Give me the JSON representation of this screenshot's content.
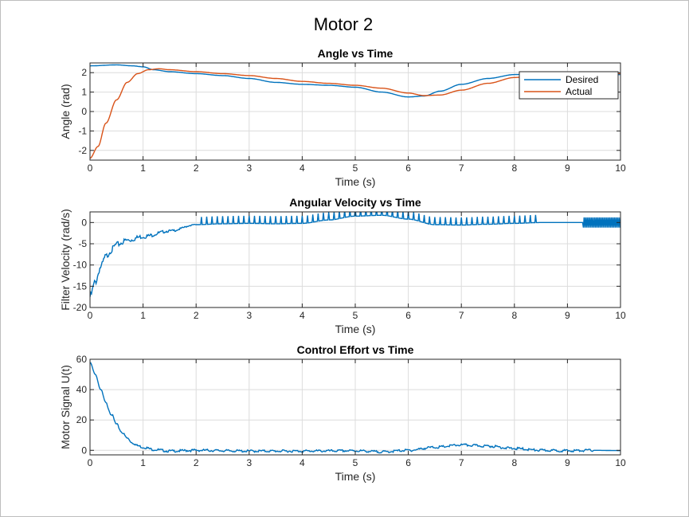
{
  "figure": {
    "title": "Motor 2"
  },
  "colors": {
    "series1": "#0072BD",
    "series2": "#D95319",
    "grid": "#dcdcdc",
    "axis": "#262626"
  },
  "chart_data": [
    {
      "type": "line",
      "title": "Angle vs Time",
      "xlabel": "Time (s)",
      "ylabel": "Angle (rad)",
      "xlim": [
        0,
        10
      ],
      "ylim": [
        -2.5,
        2.5
      ],
      "xticks": [
        0,
        1,
        2,
        3,
        4,
        5,
        6,
        7,
        8,
        9,
        10
      ],
      "yticks": [
        -2,
        -1,
        0,
        1,
        2
      ],
      "grid": true,
      "legend": {
        "placement": "top-right",
        "entries": [
          "Desired",
          "Actual"
        ]
      },
      "series": [
        {
          "name": "Desired",
          "x": [
            0,
            0.5,
            0.8,
            1.0,
            1.2,
            1.5,
            2.0,
            2.5,
            3.0,
            3.5,
            4.0,
            4.5,
            5.0,
            5.5,
            6.0,
            6.3,
            6.6,
            7.0,
            7.5,
            8.0,
            8.5,
            9.0,
            9.5,
            10
          ],
          "y": [
            2.35,
            2.4,
            2.35,
            2.3,
            2.15,
            2.05,
            1.95,
            1.85,
            1.7,
            1.5,
            1.4,
            1.35,
            1.25,
            1.0,
            0.75,
            0.8,
            1.05,
            1.4,
            1.7,
            1.9,
            1.95,
            1.9,
            1.85,
            1.9
          ]
        },
        {
          "name": "Actual",
          "x": [
            0,
            0.15,
            0.3,
            0.5,
            0.7,
            0.9,
            1.1,
            1.3,
            1.5,
            2.0,
            2.5,
            3.0,
            3.5,
            4.0,
            4.5,
            5.0,
            5.5,
            6.0,
            6.3,
            6.6,
            7.0,
            7.5,
            8.0,
            8.5,
            9.0,
            9.5,
            10
          ],
          "y": [
            -2.4,
            -1.8,
            -0.6,
            0.6,
            1.5,
            1.95,
            2.15,
            2.2,
            2.15,
            2.05,
            1.95,
            1.85,
            1.7,
            1.55,
            1.45,
            1.35,
            1.2,
            0.95,
            0.82,
            0.85,
            1.1,
            1.45,
            1.75,
            1.9,
            1.95,
            1.9,
            1.95
          ]
        }
      ]
    },
    {
      "type": "line",
      "title": "Angular Velocity vs Time",
      "xlabel": "Time (s)",
      "ylabel": "Filter Velocity (rad/s)",
      "xlim": [
        0,
        10
      ],
      "ylim": [
        -20,
        2.5
      ],
      "xticks": [
        0,
        1,
        2,
        3,
        4,
        5,
        6,
        7,
        8,
        9,
        10
      ],
      "yticks": [
        -20,
        -15,
        -10,
        -5,
        0
      ],
      "grid": true,
      "series": [
        {
          "x": [
            0,
            0.1,
            0.2,
            0.3,
            0.4,
            0.5,
            0.7,
            1.0,
            1.5,
            2.0,
            2.5,
            3.0,
            3.5,
            4.0,
            4.5,
            5.0,
            5.5,
            6.0,
            6.5,
            7.0,
            7.5,
            8.0,
            8.5,
            9.0,
            9.3,
            9.5,
            10
          ],
          "y": [
            -17.5,
            -14.0,
            -10.5,
            -8.0,
            -6.5,
            -5.2,
            -4.2,
            -3.3,
            -2.0,
            -0.5,
            -0.3,
            -0.2,
            -0.3,
            -0.2,
            0.6,
            1.5,
            1.7,
            0.8,
            -0.5,
            -0.6,
            -0.4,
            -0.2,
            0,
            0,
            0,
            0,
            0
          ]
        }
      ]
    },
    {
      "type": "line",
      "title": "Control Effort vs Time",
      "xlabel": "Time (s)",
      "ylabel": "Motor Signal U(t)",
      "xlim": [
        0,
        10
      ],
      "ylim": [
        -3,
        60
      ],
      "xticks": [
        0,
        1,
        2,
        3,
        4,
        5,
        6,
        7,
        8,
        9,
        10
      ],
      "yticks": [
        0,
        20,
        40,
        60
      ],
      "grid": true,
      "series": [
        {
          "x": [
            0,
            0.1,
            0.2,
            0.3,
            0.4,
            0.5,
            0.6,
            0.7,
            0.8,
            0.9,
            1.0,
            1.2,
            1.5,
            2.0,
            3.0,
            4.0,
            5.0,
            5.5,
            6.0,
            6.5,
            7.0,
            7.5,
            8.0,
            8.5,
            9.0,
            9.5,
            10
          ],
          "y": [
            58,
            50,
            40,
            31,
            24,
            17,
            12,
            8,
            5,
            3,
            2,
            0.5,
            -0.5,
            0,
            -0.5,
            -0.5,
            -0.3,
            -1,
            0,
            2,
            3.5,
            2.8,
            1.2,
            0,
            -0.3,
            0,
            -0.2
          ]
        }
      ]
    }
  ]
}
